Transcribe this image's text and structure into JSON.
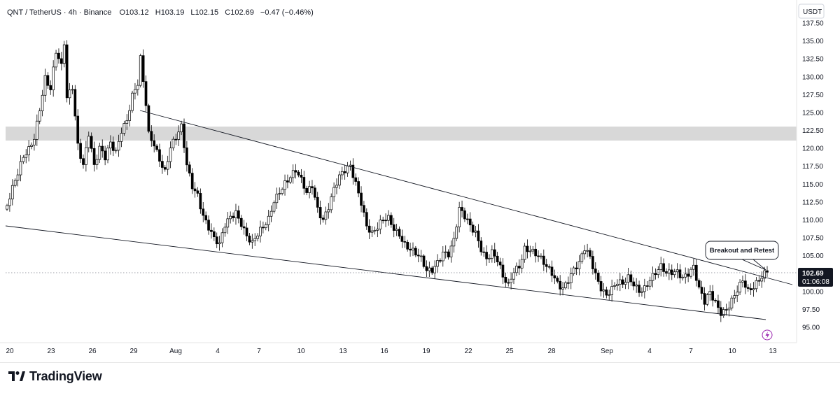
{
  "header": {
    "symbol": "QNT / TetherUS · 4h · Binance",
    "open_label": "O",
    "open": "103.12",
    "high_label": "H",
    "high": "103.19",
    "low_label": "L",
    "low": "102.15",
    "close_label": "C",
    "close": "102.69",
    "change": "−0.47 (−0.46%)"
  },
  "currency": "USDT",
  "last_price": "102.69",
  "countdown": "01:06:08",
  "annotation": "Breakout and Retest",
  "brand": "TradingView",
  "colors": {
    "candle": "#000000",
    "background": "#ffffff",
    "resistance_zone": "#d1d1d1",
    "price_tag": "#131722",
    "accent_icon": "#9c27b0"
  },
  "chart_data": {
    "type": "candlestick",
    "symbol": "QNT/USDT",
    "timeframe": "4h",
    "y_ticks": [
      "137.50",
      "135.00",
      "132.50",
      "130.00",
      "127.50",
      "125.00",
      "122.50",
      "120.00",
      "117.50",
      "115.00",
      "112.50",
      "110.00",
      "107.50",
      "105.00",
      "100.00",
      "97.50",
      "95.00"
    ],
    "x_ticks": [
      "20",
      "23",
      "26",
      "29",
      "Aug",
      "4",
      "7",
      "10",
      "13",
      "16",
      "19",
      "22",
      "25",
      "28",
      "Sep",
      "4",
      "7",
      "10",
      "13"
    ],
    "ylim": [
      93,
      138
    ],
    "resistance_zone": [
      120.9,
      122.9
    ],
    "trendlines": [
      {
        "name": "upper",
        "points": [
          [
            "Jul 29",
            125.2
          ],
          [
            "Sep 13",
            100.9
          ]
        ]
      },
      {
        "name": "lower",
        "points": [
          [
            "Jul 20",
            109.3
          ],
          [
            "Sep 12",
            96.0
          ]
        ]
      }
    ],
    "path": [
      [
        0,
        112
      ],
      [
        2,
        114
      ],
      [
        4,
        116
      ],
      [
        6,
        118.5
      ],
      [
        8,
        120
      ],
      [
        10,
        122
      ],
      [
        12,
        126
      ],
      [
        14,
        130
      ],
      [
        16,
        128
      ],
      [
        18,
        133
      ],
      [
        20,
        131
      ],
      [
        21,
        134.5
      ],
      [
        22,
        127
      ],
      [
        24,
        129
      ],
      [
        26,
        121
      ],
      [
        28,
        118
      ],
      [
        30,
        122
      ],
      [
        32,
        117
      ],
      [
        34,
        119.5
      ],
      [
        36,
        118.5
      ],
      [
        38,
        121
      ],
      [
        40,
        120
      ],
      [
        42,
        123
      ],
      [
        44,
        124
      ],
      [
        46,
        127
      ],
      [
        48,
        128.5
      ],
      [
        49,
        132
      ],
      [
        50,
        129
      ],
      [
        51,
        126
      ],
      [
        52,
        122
      ],
      [
        54,
        121
      ],
      [
        56,
        119
      ],
      [
        58,
        117
      ],
      [
        60,
        120
      ],
      [
        62,
        121
      ],
      [
        64,
        122.5
      ],
      [
        66,
        117.5
      ],
      [
        68,
        115
      ],
      [
        70,
        114
      ],
      [
        72,
        111
      ],
      [
        74,
        109
      ],
      [
        76,
        107
      ],
      [
        78,
        106
      ],
      [
        80,
        109
      ],
      [
        82,
        110.5
      ],
      [
        84,
        111.5
      ],
      [
        86,
        110
      ],
      [
        88,
        108
      ],
      [
        90,
        106.5
      ],
      [
        92,
        107.5
      ],
      [
        94,
        108.5
      ],
      [
        96,
        110
      ],
      [
        98,
        113
      ],
      [
        100,
        114.5
      ],
      [
        102,
        115.5
      ],
      [
        104,
        116
      ],
      [
        106,
        116.5
      ],
      [
        108,
        115
      ],
      [
        110,
        113.5
      ],
      [
        112,
        115
      ],
      [
        114,
        112
      ],
      [
        116,
        110.5
      ],
      [
        118,
        112
      ],
      [
        120,
        114
      ],
      [
        122,
        115.5
      ],
      [
        124,
        116.5
      ],
      [
        126,
        117.5
      ],
      [
        128,
        115.5
      ],
      [
        130,
        113
      ],
      [
        132,
        109.5
      ],
      [
        134,
        108
      ],
      [
        136,
        108.5
      ],
      [
        138,
        109.5
      ],
      [
        140,
        110
      ],
      [
        142,
        109
      ],
      [
        144,
        108.5
      ],
      [
        146,
        107
      ],
      [
        148,
        106
      ],
      [
        150,
        105
      ],
      [
        152,
        104
      ],
      [
        154,
        102.5
      ],
      [
        156,
        103
      ],
      [
        158,
        104.5
      ],
      [
        160,
        106
      ],
      [
        162,
        105.5
      ],
      [
        164,
        107
      ],
      [
        166,
        111
      ],
      [
        168,
        110
      ],
      [
        170,
        109
      ],
      [
        172,
        108.5
      ],
      [
        174,
        106.5
      ],
      [
        176,
        105
      ],
      [
        178,
        105.5
      ],
      [
        180,
        104
      ],
      [
        182,
        101.5
      ],
      [
        184,
        100.5
      ],
      [
        186,
        103
      ],
      [
        188,
        104
      ],
      [
        190,
        106.5
      ],
      [
        192,
        106
      ],
      [
        194,
        105
      ],
      [
        196,
        104
      ],
      [
        198,
        103
      ],
      [
        200,
        102.5
      ],
      [
        202,
        101.5
      ],
      [
        204,
        101
      ],
      [
        206,
        102
      ],
      [
        208,
        103
      ],
      [
        210,
        103.5
      ],
      [
        212,
        105.5
      ],
      [
        214,
        104.5
      ],
      [
        216,
        102.5
      ],
      [
        218,
        101
      ],
      [
        220,
        100
      ],
      [
        222,
        100.5
      ],
      [
        224,
        101
      ],
      [
        226,
        100.5
      ],
      [
        228,
        101.5
      ],
      [
        230,
        101
      ],
      [
        232,
        100.5
      ],
      [
        234,
        101
      ],
      [
        236,
        102
      ],
      [
        238,
        102.5
      ],
      [
        240,
        103
      ],
      [
        242,
        102
      ],
      [
        244,
        102.5
      ],
      [
        246,
        103
      ],
      [
        248,
        102.5
      ],
      [
        250,
        103
      ],
      [
        252,
        103.5
      ],
      [
        254,
        100
      ],
      [
        256,
        98
      ],
      [
        258,
        99.5
      ],
      [
        260,
        98.5
      ],
      [
        262,
        97.5
      ],
      [
        264,
        98
      ],
      [
        266,
        99
      ],
      [
        268,
        100
      ],
      [
        270,
        101
      ],
      [
        272,
        99.5
      ],
      [
        274,
        100.5
      ],
      [
        276,
        102
      ],
      [
        278,
        103.1
      ],
      [
        279,
        102.69
      ]
    ]
  }
}
